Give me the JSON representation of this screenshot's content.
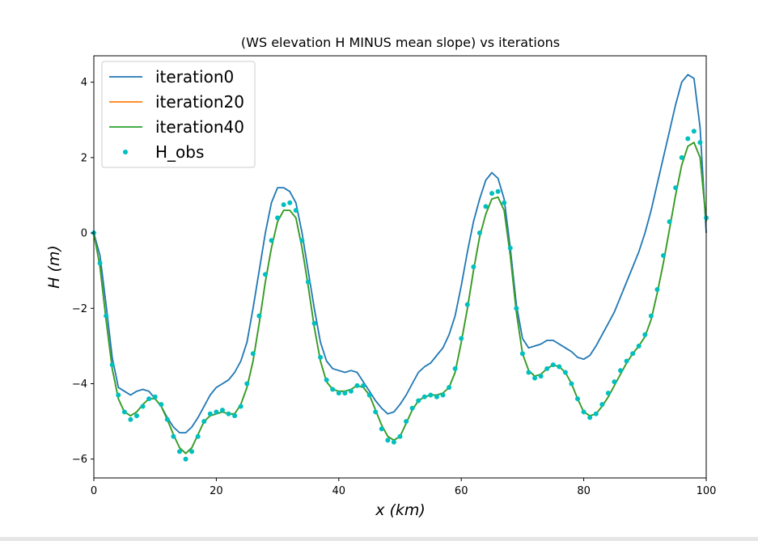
{
  "chart_data": {
    "type": "line",
    "title": "(WS elevation H MINUS mean slope) vs iterations",
    "xlabel": "x (km)",
    "ylabel": "H (m)",
    "xlim": [
      0,
      100
    ],
    "ylim": [
      -6.5,
      4.7
    ],
    "x_ticks": [
      0,
      20,
      40,
      60,
      80,
      100
    ],
    "y_ticks": [
      -6,
      -4,
      -2,
      0,
      2,
      4
    ],
    "x_tick_labels": [
      "0",
      "20",
      "40",
      "60",
      "80",
      "100"
    ],
    "y_tick_labels": [
      "−6",
      "−4",
      "−2",
      "0",
      "2",
      "4"
    ],
    "grid": false,
    "legend_position": "top-left",
    "series": [
      {
        "name": "iteration0",
        "kind": "line",
        "color": "#1f77b4",
        "x": [
          0,
          1,
          2,
          3,
          4,
          5,
          6,
          7,
          8,
          9,
          10,
          11,
          12,
          13,
          14,
          15,
          16,
          17,
          18,
          19,
          20,
          21,
          22,
          23,
          24,
          25,
          26,
          27,
          28,
          29,
          30,
          31,
          32,
          33,
          34,
          35,
          36,
          37,
          38,
          39,
          40,
          41,
          42,
          43,
          44,
          45,
          46,
          47,
          48,
          49,
          50,
          51,
          52,
          53,
          54,
          55,
          56,
          57,
          58,
          59,
          60,
          61,
          62,
          63,
          64,
          65,
          66,
          67,
          68,
          69,
          70,
          71,
          72,
          73,
          74,
          75,
          76,
          77,
          78,
          79,
          80,
          81,
          82,
          83,
          84,
          85,
          86,
          87,
          88,
          89,
          90,
          91,
          92,
          93,
          94,
          95,
          96,
          97,
          98,
          99,
          100
        ],
        "y": [
          0.0,
          -0.6,
          -1.9,
          -3.3,
          -4.1,
          -4.2,
          -4.3,
          -4.2,
          -4.15,
          -4.2,
          -4.4,
          -4.6,
          -4.9,
          -5.15,
          -5.3,
          -5.3,
          -5.15,
          -4.9,
          -4.6,
          -4.3,
          -4.1,
          -4.0,
          -3.9,
          -3.7,
          -3.4,
          -2.9,
          -2.0,
          -1.0,
          0.0,
          0.8,
          1.2,
          1.2,
          1.1,
          0.8,
          0.0,
          -1.0,
          -2.0,
          -2.9,
          -3.4,
          -3.6,
          -3.65,
          -3.7,
          -3.65,
          -3.7,
          -3.95,
          -4.2,
          -4.45,
          -4.65,
          -4.8,
          -4.75,
          -4.55,
          -4.3,
          -4.0,
          -3.7,
          -3.55,
          -3.45,
          -3.25,
          -3.05,
          -2.7,
          -2.2,
          -1.4,
          -0.5,
          0.3,
          0.9,
          1.4,
          1.6,
          1.45,
          0.9,
          -0.4,
          -1.9,
          -2.8,
          -3.05,
          -3.0,
          -2.95,
          -2.85,
          -2.85,
          -2.95,
          -3.05,
          -3.15,
          -3.3,
          -3.35,
          -3.25,
          -3.0,
          -2.7,
          -2.4,
          -2.1,
          -1.7,
          -1.3,
          -0.9,
          -0.5,
          0.0,
          0.6,
          1.3,
          2.0,
          2.7,
          3.4,
          4.0,
          4.2,
          4.1,
          2.8,
          0.0
        ]
      },
      {
        "name": "iteration20",
        "kind": "line",
        "color": "#ff7f0e",
        "x": [
          0,
          1,
          2,
          3,
          4,
          5,
          6,
          7,
          8,
          9,
          10,
          11,
          12,
          13,
          14,
          15,
          16,
          17,
          18,
          19,
          20,
          21,
          22,
          23,
          24,
          25,
          26,
          27,
          28,
          29,
          30,
          31,
          32,
          33,
          34,
          35,
          36,
          37,
          38,
          39,
          40,
          41,
          42,
          43,
          44,
          45,
          46,
          47,
          48,
          49,
          50,
          51,
          52,
          53,
          54,
          55,
          56,
          57,
          58,
          59,
          60,
          61,
          62,
          63,
          64,
          65,
          66,
          67,
          68,
          69,
          70,
          71,
          72,
          73,
          74,
          75,
          76,
          77,
          78,
          79,
          80,
          81,
          82,
          83,
          84,
          85,
          86,
          87,
          88,
          89,
          90,
          91,
          92,
          93,
          94,
          95,
          96,
          97,
          98,
          99,
          100
        ],
        "y": [
          0.0,
          -0.9,
          -2.3,
          -3.6,
          -4.4,
          -4.75,
          -4.85,
          -4.75,
          -4.55,
          -4.4,
          -4.4,
          -4.6,
          -4.95,
          -5.35,
          -5.7,
          -5.85,
          -5.7,
          -5.35,
          -5.0,
          -4.85,
          -4.8,
          -4.75,
          -4.8,
          -4.8,
          -4.55,
          -4.1,
          -3.4,
          -2.4,
          -1.3,
          -0.4,
          0.3,
          0.6,
          0.6,
          0.4,
          -0.4,
          -1.4,
          -2.5,
          -3.4,
          -3.95,
          -4.15,
          -4.2,
          -4.2,
          -4.15,
          -4.05,
          -4.1,
          -4.3,
          -4.7,
          -5.1,
          -5.4,
          -5.5,
          -5.4,
          -5.05,
          -4.7,
          -4.45,
          -4.35,
          -4.3,
          -4.3,
          -4.25,
          -4.1,
          -3.7,
          -2.9,
          -2.0,
          -1.0,
          -0.1,
          0.5,
          0.9,
          0.95,
          0.6,
          -0.6,
          -2.1,
          -3.2,
          -3.65,
          -3.8,
          -3.75,
          -3.6,
          -3.5,
          -3.55,
          -3.7,
          -4.0,
          -4.4,
          -4.75,
          -4.85,
          -4.8,
          -4.6,
          -4.35,
          -4.05,
          -3.75,
          -3.45,
          -3.2,
          -3.0,
          -2.75,
          -2.3,
          -1.6,
          -0.8,
          0.1,
          1.0,
          1.8,
          2.3,
          2.4,
          2.0,
          0.3
        ]
      },
      {
        "name": "iteration40",
        "kind": "line",
        "color": "#2ca02c",
        "x": [
          0,
          1,
          2,
          3,
          4,
          5,
          6,
          7,
          8,
          9,
          10,
          11,
          12,
          13,
          14,
          15,
          16,
          17,
          18,
          19,
          20,
          21,
          22,
          23,
          24,
          25,
          26,
          27,
          28,
          29,
          30,
          31,
          32,
          33,
          34,
          35,
          36,
          37,
          38,
          39,
          40,
          41,
          42,
          43,
          44,
          45,
          46,
          47,
          48,
          49,
          50,
          51,
          52,
          53,
          54,
          55,
          56,
          57,
          58,
          59,
          60,
          61,
          62,
          63,
          64,
          65,
          66,
          67,
          68,
          69,
          70,
          71,
          72,
          73,
          74,
          75,
          76,
          77,
          78,
          79,
          80,
          81,
          82,
          83,
          84,
          85,
          86,
          87,
          88,
          89,
          90,
          91,
          92,
          93,
          94,
          95,
          96,
          97,
          98,
          99,
          100
        ],
        "y": [
          0.0,
          -0.9,
          -2.3,
          -3.6,
          -4.4,
          -4.75,
          -4.85,
          -4.75,
          -4.55,
          -4.4,
          -4.4,
          -4.6,
          -4.95,
          -5.35,
          -5.7,
          -5.85,
          -5.7,
          -5.35,
          -5.0,
          -4.85,
          -4.8,
          -4.75,
          -4.8,
          -4.8,
          -4.55,
          -4.1,
          -3.4,
          -2.4,
          -1.3,
          -0.4,
          0.3,
          0.6,
          0.6,
          0.4,
          -0.4,
          -1.4,
          -2.5,
          -3.4,
          -3.95,
          -4.15,
          -4.2,
          -4.2,
          -4.15,
          -4.05,
          -4.1,
          -4.3,
          -4.7,
          -5.1,
          -5.4,
          -5.5,
          -5.4,
          -5.05,
          -4.7,
          -4.45,
          -4.35,
          -4.3,
          -4.3,
          -4.25,
          -4.1,
          -3.7,
          -2.9,
          -2.0,
          -1.0,
          -0.1,
          0.5,
          0.9,
          0.95,
          0.6,
          -0.6,
          -2.1,
          -3.2,
          -3.65,
          -3.8,
          -3.75,
          -3.6,
          -3.5,
          -3.55,
          -3.7,
          -4.0,
          -4.4,
          -4.75,
          -4.85,
          -4.8,
          -4.6,
          -4.35,
          -4.05,
          -3.75,
          -3.45,
          -3.2,
          -3.0,
          -2.75,
          -2.3,
          -1.6,
          -0.8,
          0.1,
          1.0,
          1.8,
          2.3,
          2.4,
          2.0,
          0.3
        ]
      },
      {
        "name": "H_obs",
        "kind": "scatter",
        "color": "#00bfbf",
        "x": [
          0,
          1,
          2,
          3,
          4,
          5,
          6,
          7,
          8,
          9,
          10,
          11,
          12,
          13,
          14,
          15,
          16,
          17,
          18,
          19,
          20,
          21,
          22,
          23,
          24,
          25,
          26,
          27,
          28,
          29,
          30,
          31,
          32,
          33,
          34,
          35,
          36,
          37,
          38,
          39,
          40,
          41,
          42,
          43,
          44,
          45,
          46,
          47,
          48,
          49,
          50,
          51,
          52,
          53,
          54,
          55,
          56,
          57,
          58,
          59,
          60,
          61,
          62,
          63,
          64,
          65,
          66,
          67,
          68,
          69,
          70,
          71,
          72,
          73,
          74,
          75,
          76,
          77,
          78,
          79,
          80,
          81,
          82,
          83,
          84,
          85,
          86,
          87,
          88,
          89,
          90,
          91,
          92,
          93,
          94,
          95,
          96,
          97,
          98,
          99,
          100
        ],
        "y": [
          0.0,
          -0.8,
          -2.2,
          -3.5,
          -4.3,
          -4.75,
          -4.95,
          -4.85,
          -4.6,
          -4.4,
          -4.35,
          -4.55,
          -4.95,
          -5.4,
          -5.8,
          -6.0,
          -5.8,
          -5.4,
          -5.0,
          -4.8,
          -4.75,
          -4.7,
          -4.8,
          -4.85,
          -4.6,
          -4.0,
          -3.2,
          -2.2,
          -1.1,
          -0.2,
          0.4,
          0.75,
          0.8,
          0.6,
          -0.2,
          -1.3,
          -2.4,
          -3.3,
          -3.9,
          -4.15,
          -4.25,
          -4.25,
          -4.2,
          -4.05,
          -4.05,
          -4.3,
          -4.75,
          -5.2,
          -5.5,
          -5.55,
          -5.4,
          -5.0,
          -4.65,
          -4.45,
          -4.35,
          -4.3,
          -4.35,
          -4.3,
          -4.1,
          -3.6,
          -2.8,
          -1.9,
          -0.9,
          0.0,
          0.7,
          1.05,
          1.1,
          0.8,
          -0.4,
          -2.0,
          -3.2,
          -3.7,
          -3.85,
          -3.8,
          -3.6,
          -3.5,
          -3.55,
          -3.7,
          -4.0,
          -4.4,
          -4.75,
          -4.9,
          -4.8,
          -4.55,
          -4.25,
          -3.95,
          -3.65,
          -3.4,
          -3.2,
          -3.0,
          -2.7,
          -2.2,
          -1.5,
          -0.6,
          0.3,
          1.2,
          2.0,
          2.5,
          2.7,
          2.4,
          0.4
        ]
      }
    ]
  }
}
